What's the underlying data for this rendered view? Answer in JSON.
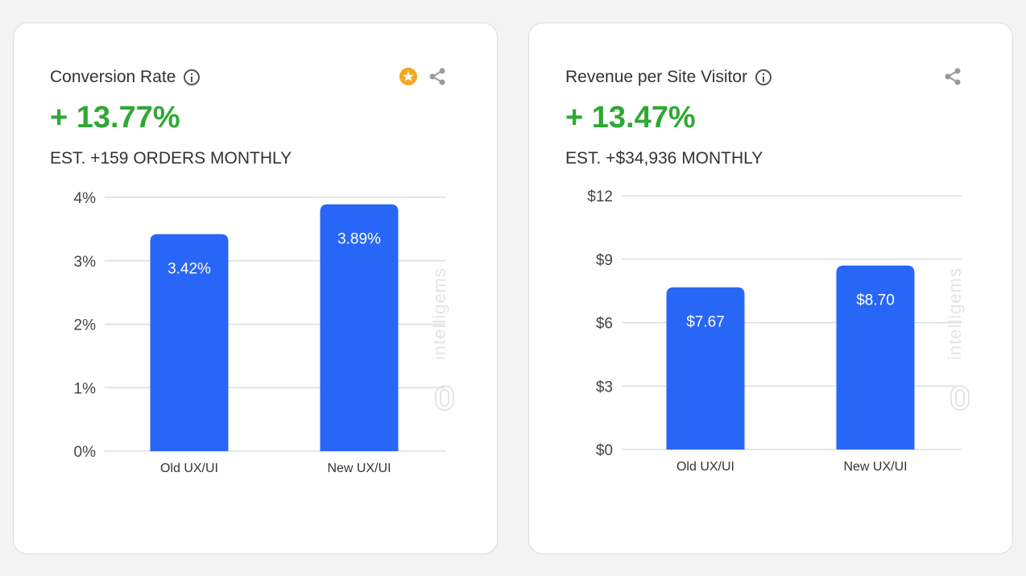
{
  "colors": {
    "accent": "#2fa836",
    "bar": "#2866f7",
    "star": "#f5a623"
  },
  "cards": [
    {
      "title": "Conversion Rate",
      "headline": "+ 13.77%",
      "estimate": "EST. +159 ORDERS MONTHLY",
      "icons": [
        "info-icon",
        "star-icon",
        "share-icon"
      ],
      "watermark": "intelligems",
      "chart_data": {
        "type": "bar",
        "categories": [
          "Old UX/UI",
          "New UX/UI"
        ],
        "values": [
          3.42,
          3.89
        ],
        "value_labels": [
          "3.42%",
          "3.89%"
        ],
        "ylim": [
          0,
          4
        ],
        "yticks": [
          0,
          1,
          2,
          3,
          4
        ],
        "ytick_labels": [
          "0%",
          "1%",
          "2%",
          "3%",
          "4%"
        ],
        "grid": true
      }
    },
    {
      "title": "Revenue per Site Visitor",
      "headline": "+ 13.47%",
      "estimate": "EST. +$34,936 MONTHLY",
      "icons": [
        "info-icon",
        "share-icon"
      ],
      "watermark": "intelligems",
      "chart_data": {
        "type": "bar",
        "categories": [
          "Old UX/UI",
          "New UX/UI"
        ],
        "values": [
          7.67,
          8.7
        ],
        "value_labels": [
          "$7.67",
          "$8.70"
        ],
        "ylim": [
          0,
          12
        ],
        "yticks": [
          0,
          3,
          6,
          9,
          12
        ],
        "ytick_labels": [
          "$0",
          "$3",
          "$6",
          "$9",
          "$12"
        ],
        "grid": true
      }
    }
  ]
}
